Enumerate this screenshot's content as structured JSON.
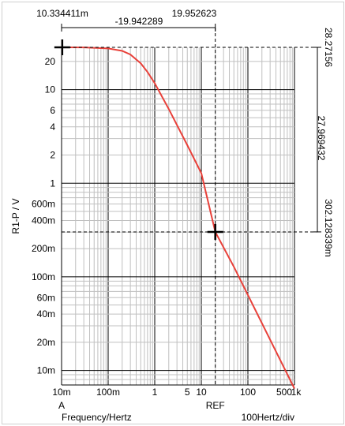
{
  "chart_data": {
    "type": "line",
    "x_scale": "log",
    "y_scale": "log",
    "xlim": [
      0.01,
      1000
    ],
    "ylim": [
      0.007,
      28.27156
    ],
    "ylabel": "R1-P / V",
    "xlabel": "Frequency/Hertz",
    "x_div_label": "100Hertz/div",
    "x_tick_labels": [
      {
        "v": 0.01,
        "t": "10m"
      },
      {
        "v": 0.1,
        "t": "100m"
      },
      {
        "v": 1,
        "t": "1"
      },
      {
        "v": 5,
        "t": "5"
      },
      {
        "v": 10,
        "t": "10"
      },
      {
        "v": 100,
        "t": "100"
      },
      {
        "v": 500,
        "t": "500"
      },
      {
        "v": 1000,
        "t": "1k"
      }
    ],
    "y_tick_labels": [
      {
        "v": 20,
        "t": "20"
      },
      {
        "v": 10,
        "t": "10"
      },
      {
        "v": 6,
        "t": "6"
      },
      {
        "v": 4,
        "t": "4"
      },
      {
        "v": 2,
        "t": "2"
      },
      {
        "v": 1,
        "t": "1"
      },
      {
        "v": 0.6,
        "t": "600m"
      },
      {
        "v": 0.4,
        "t": "400m"
      },
      {
        "v": 0.2,
        "t": "200m"
      },
      {
        "v": 0.1,
        "t": "100m"
      },
      {
        "v": 0.06,
        "t": "60m"
      },
      {
        "v": 0.04,
        "t": "40m"
      },
      {
        "v": 0.02,
        "t": "20m"
      },
      {
        "v": 0.01,
        "t": "10m"
      }
    ],
    "series": [
      {
        "color": "#e8413a",
        "x": [
          0.01,
          0.03,
          0.1,
          0.2,
          0.3,
          0.5,
          0.7,
          1,
          2,
          5,
          10,
          19.952623,
          50,
          100,
          200,
          500,
          1000
        ],
        "y": [
          28.27,
          28.2,
          27.55,
          25.9,
          23.7,
          19.1,
          15.4,
          11.7,
          6.2,
          2.55,
          1.28,
          0.302,
          0.128,
          0.064,
          0.032,
          0.0128,
          0.0064
        ]
      }
    ],
    "cursor_a": {
      "x": 0.010334411,
      "y": 28.27156,
      "x_label": "10.334411m",
      "y_label": "28.27156",
      "marker_label": "A"
    },
    "cursor_ref": {
      "x": 19.952623,
      "y": 0.302128339,
      "x_label": "19.952623",
      "y_label": "302.128339m",
      "marker_label": "REF"
    },
    "delta_x_label": "-19.942289",
    "delta_y_label": "27.969432",
    "colors": {
      "curve": "#e8413a",
      "grid_major": "#000000",
      "grid_minor": "#c0c0c0"
    }
  }
}
